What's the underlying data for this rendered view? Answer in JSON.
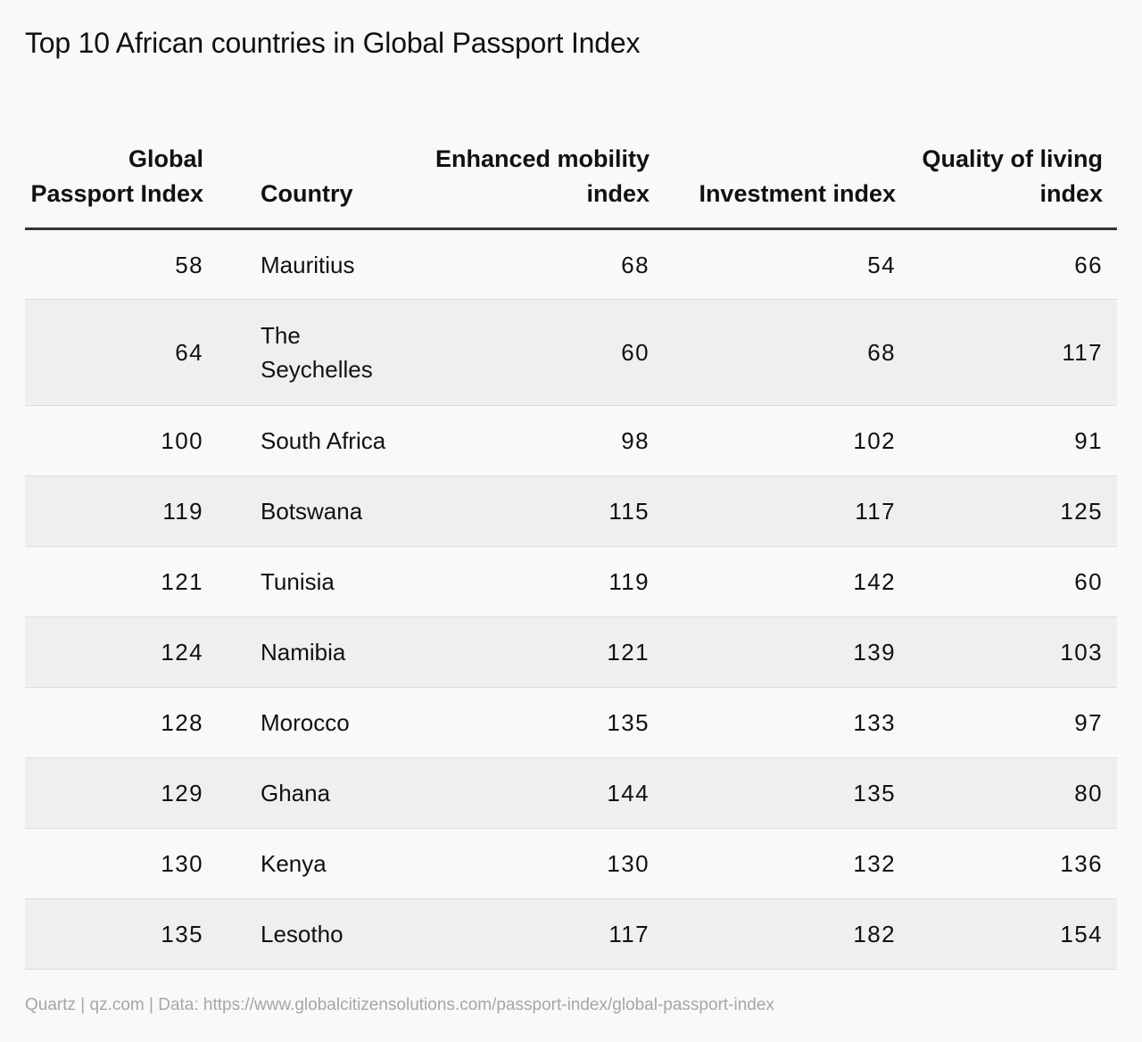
{
  "chart_data": {
    "type": "table",
    "title": "Top 10 African countries in Global Passport Index",
    "columns": [
      "Global Passport Index",
      "Country",
      "Enhanced mobility index",
      "Investment index",
      "Quality of living index"
    ],
    "rows": [
      {
        "global": "58",
        "country": "Mauritius",
        "mobility": "68",
        "investment": "54",
        "living": "66"
      },
      {
        "global": "64",
        "country": "The Seychelles",
        "mobility": "60",
        "investment": "68",
        "living": "117"
      },
      {
        "global": "100",
        "country": "South Africa",
        "mobility": "98",
        "investment": "102",
        "living": "91"
      },
      {
        "global": "119",
        "country": "Botswana",
        "mobility": "115",
        "investment": "117",
        "living": "125"
      },
      {
        "global": "121",
        "country": "Tunisia",
        "mobility": "119",
        "investment": "142",
        "living": "60"
      },
      {
        "global": "124",
        "country": "Namibia",
        "mobility": "121",
        "investment": "139",
        "living": "103"
      },
      {
        "global": "128",
        "country": "Morocco",
        "mobility": "135",
        "investment": "133",
        "living": "97"
      },
      {
        "global": "129",
        "country": "Ghana",
        "mobility": "144",
        "investment": "135",
        "living": "80"
      },
      {
        "global": "130",
        "country": "Kenya",
        "mobility": "130",
        "investment": "132",
        "living": "136"
      },
      {
        "global": "135",
        "country": "Lesotho",
        "mobility": "117",
        "investment": "182",
        "living": "154"
      }
    ],
    "source": "Quartz | qz.com | Data: https://www.globalcitizensolutions.com/passport-index/global-passport-index"
  }
}
